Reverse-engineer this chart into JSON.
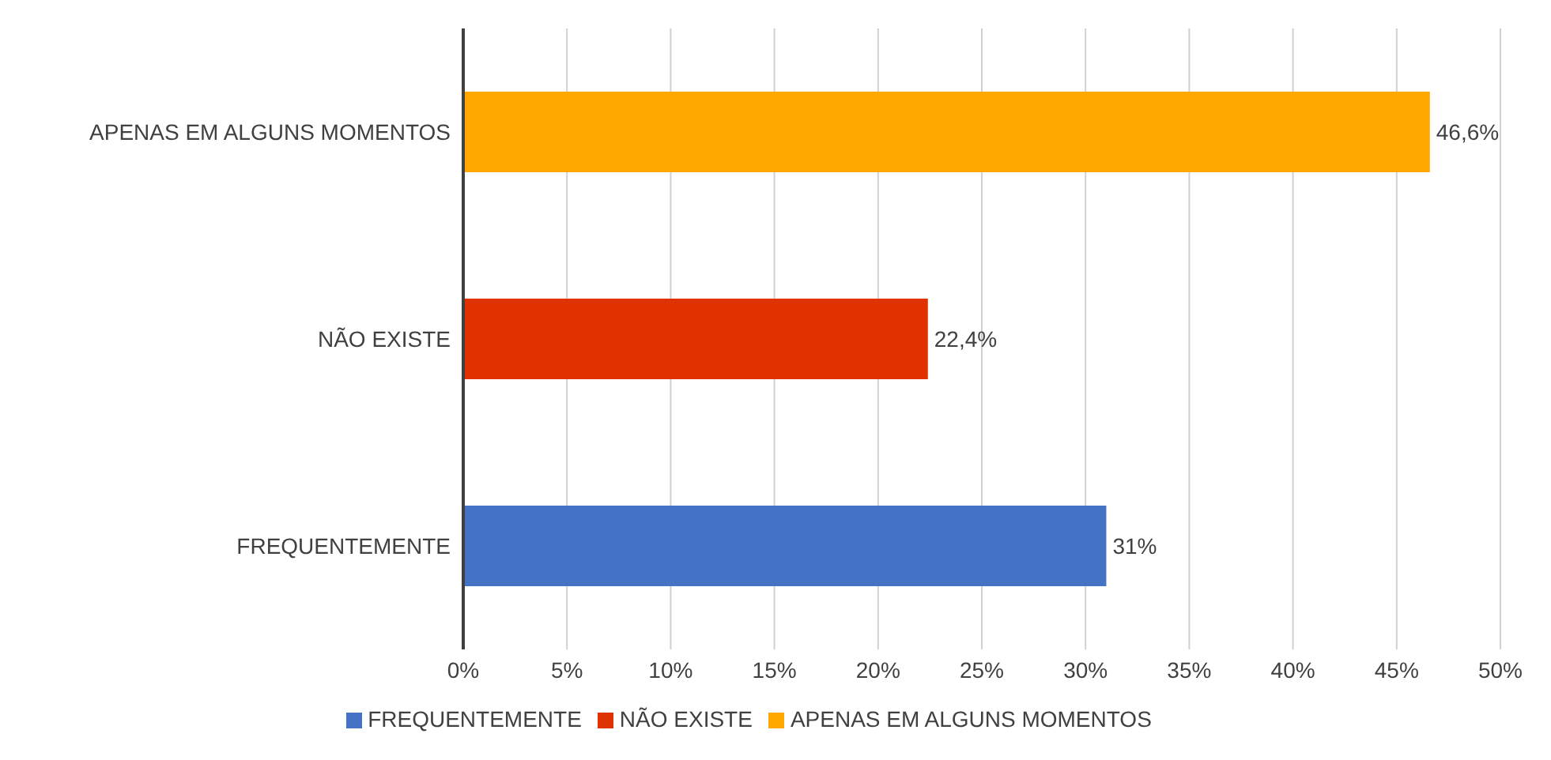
{
  "chart_data": {
    "type": "bar",
    "orientation": "horizontal",
    "stacked": true,
    "categories": [
      "APENAS EM ALGUNS MOMENTOS",
      "NÃO EXISTE",
      "FREQUENTEMENTE"
    ],
    "series": [
      {
        "name": "FREQUENTEMENTE",
        "color": "#4472c4",
        "values": [
          null,
          null,
          31
        ],
        "value_labels": [
          null,
          null,
          "31%"
        ]
      },
      {
        "name": "NÃO EXISTE",
        "color": "#e03200",
        "values": [
          null,
          22.4,
          null
        ],
        "value_labels": [
          null,
          "22,4%",
          null
        ]
      },
      {
        "name": "APENAS EM ALGUNS MOMENTOS",
        "color": "#ffa800",
        "values": [
          46.6,
          null,
          null
        ],
        "value_labels": [
          "46,6%",
          null,
          null
        ]
      }
    ],
    "xlim": [
      0,
      50
    ],
    "xticks": [
      {
        "value": 0,
        "label": "0%"
      },
      {
        "value": 5,
        "label": "5%"
      },
      {
        "value": 10,
        "label": "10%"
      },
      {
        "value": 15,
        "label": "15%"
      },
      {
        "value": 20,
        "label": "20%"
      },
      {
        "value": 25,
        "label": "25%"
      },
      {
        "value": 30,
        "label": "30%"
      },
      {
        "value": 35,
        "label": "35%"
      },
      {
        "value": 40,
        "label": "40%"
      },
      {
        "value": 45,
        "label": "45%"
      },
      {
        "value": 50,
        "label": "50%"
      }
    ],
    "grid": "x",
    "legend": "bottom"
  }
}
